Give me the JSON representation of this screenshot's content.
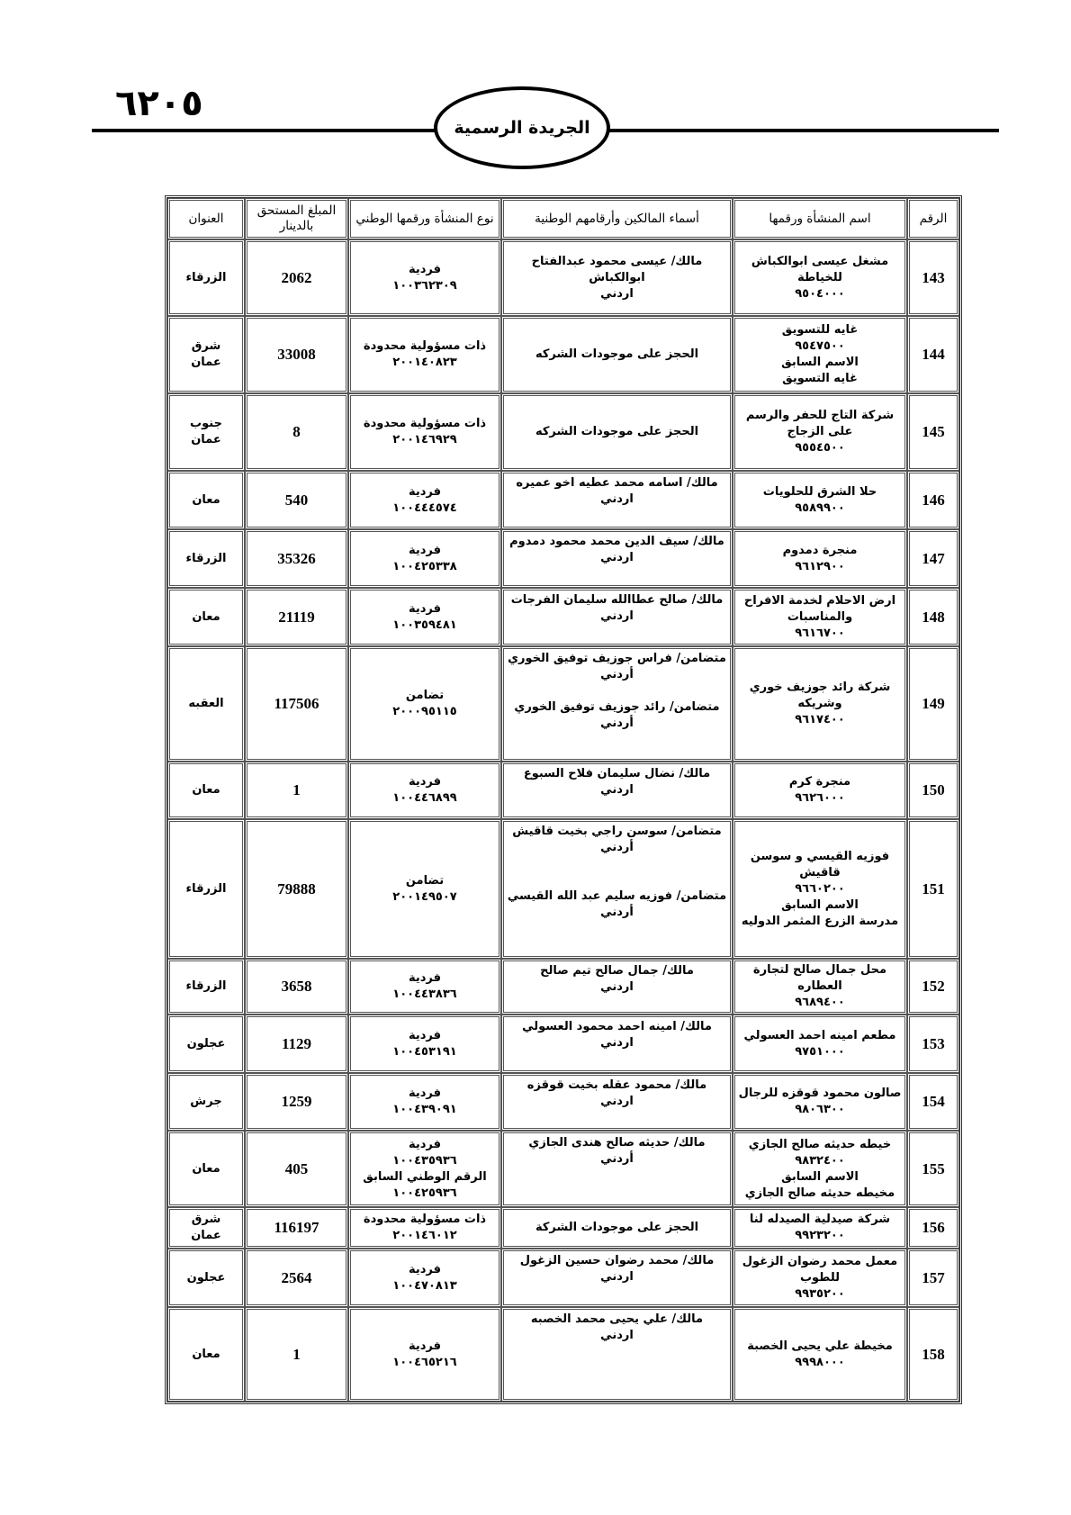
{
  "header": {
    "page_number": "٦٢٠٥",
    "title": "الجريدة الرسمية"
  },
  "table": {
    "columns": [
      "الرقم",
      "اسم المنشأة ورقمها",
      "أسماء المالكين وأرقامهم الوطنية",
      "نوع المنشأة ورقمها الوطني",
      "المبلغ المستحق بالدينار",
      "العنوان"
    ],
    "rows": [
      {
        "no": "143",
        "name": [
          "مشغل عيسى ابوالكباش",
          "للخياطة",
          "٩٥٠٤٠٠٠"
        ],
        "owners": [
          "مالك/ عيسى محمود عبدالفتاح",
          "ابوالكباش",
          "اردني"
        ],
        "type": [
          "فردية",
          "١٠٠٣٦٢٣٠٩"
        ],
        "amount": "2062",
        "address": [
          "الزرقاء"
        ]
      },
      {
        "no": "144",
        "name": [
          "غايه للتسويق",
          "٩٥٤٧٥٠٠",
          "الاسم السابق",
          "غايه التسويق"
        ],
        "owners": [
          "الحجز على موجودات الشركه"
        ],
        "type": [
          "ذات مسؤولية محدودة",
          "٢٠٠١٤٠٨٢٣"
        ],
        "amount": "33008",
        "address": [
          "شرق",
          "عمان"
        ]
      },
      {
        "no": "145",
        "name": [
          "شركة التاج للحفر والرسم",
          "على الزجاج",
          "٩٥٥٤٥٠٠"
        ],
        "owners": [
          "الحجز على موجودات الشركه"
        ],
        "type": [
          "ذات مسؤولية محدودة",
          "٢٠٠١٤٦٩٢٩"
        ],
        "amount": "8",
        "address": [
          "جنوب",
          "عمان"
        ]
      },
      {
        "no": "146",
        "name": [
          "حلا الشرق للحلويات",
          "٩٥٨٩٩٠٠"
        ],
        "owners": [
          "مالك/ اسامه محمد عطيه اخو عميره",
          "اردني"
        ],
        "type": [
          "فردية",
          "١٠٠٤٤٤٥٧٤"
        ],
        "amount": "540",
        "address": [
          "معان"
        ]
      },
      {
        "no": "147",
        "name": [
          "منجرة دمدوم",
          "٩٦١٢٩٠٠"
        ],
        "owners": [
          "مالك/ سيف الدين محمد محمود دمدوم",
          "اردني"
        ],
        "type": [
          "فردية",
          "١٠٠٤٢٥٣٣٨"
        ],
        "amount": "35326",
        "address": [
          "الزرقاء"
        ]
      },
      {
        "no": "148",
        "name": [
          "ارض الاحلام لخدمة الافراح",
          "والمناسبات",
          "٩٦١٦٧٠٠"
        ],
        "owners": [
          "مالك/ صالح عطاالله سليمان الفرجات",
          "اردني"
        ],
        "type": [
          "فردية",
          "١٠٠٣٥٩٤٨١"
        ],
        "amount": "21119",
        "address": [
          "معان"
        ]
      },
      {
        "no": "149",
        "name": [
          "شركة رائد جوزيف خوري",
          "وشريكه",
          "٩٦١٧٤٠٠"
        ],
        "owners": [
          "متضامن/ فراس جوزيف توفيق الخوري",
          "أردني",
          "",
          "متضامن/ رائد جوزيف توفيق الخوري",
          "أردني"
        ],
        "type": [
          "تضامن",
          "٢٠٠٠٩٥١١٥"
        ],
        "amount": "117506",
        "address": [
          "العقبه"
        ]
      },
      {
        "no": "150",
        "name": [
          "منجرة كرم",
          "٩٦٢٦٠٠٠"
        ],
        "owners": [
          "مالك/ نضال سليمان فلاح السبوع",
          "اردني"
        ],
        "type": [
          "فردية",
          "١٠٠٤٤٦٨٩٩"
        ],
        "amount": "1",
        "address": [
          "معان"
        ]
      },
      {
        "no": "151",
        "name": [
          "فوزيه القيسي و سوسن",
          "قاقيش",
          "٩٦٦٠٢٠٠",
          "الاسم السابق",
          "مدرسة الزرع المثمر الدوليه"
        ],
        "owners": [
          "متضامن/ سوسن راجي بخيت قاقيش",
          "أردني",
          "",
          "",
          "متضامن/ فوزيه سليم عبد الله القيسي",
          "أردني"
        ],
        "type": [
          "تضامن",
          "٢٠٠١٤٩٥٠٧"
        ],
        "amount": "79888",
        "address": [
          "الزرقاء"
        ]
      },
      {
        "no": "152",
        "name": [
          "محل جمال صالح لتجارة",
          "العطاره",
          "٩٦٨٩٤٠٠"
        ],
        "owners": [
          "مالك/ جمال صالح تيم صالح",
          "اردني"
        ],
        "type": [
          "فردية",
          "١٠٠٤٤٣٨٣٦"
        ],
        "amount": "3658",
        "address": [
          "الزرقاء"
        ]
      },
      {
        "no": "153",
        "name": [
          "مطعم امينه احمد العسولي",
          "٩٧٥١٠٠٠"
        ],
        "owners": [
          "مالك/ امينه احمد محمود العسولي",
          "اردني"
        ],
        "type": [
          "فردية",
          "١٠٠٤٥٣١٩١"
        ],
        "amount": "1129",
        "address": [
          "عجلون"
        ]
      },
      {
        "no": "154",
        "name": [
          "صالون محمود قوقزه للرجال",
          "٩٨٠٦٣٠٠"
        ],
        "owners": [
          "مالك/ محمود عقله بخيت قوقزه",
          "اردني"
        ],
        "type": [
          "فردية",
          "١٠٠٤٣٩٠٩١"
        ],
        "amount": "1259",
        "address": [
          "جرش"
        ]
      },
      {
        "no": "155",
        "name": [
          "خيطه حديثه صالح الجازي",
          "٩٨٣٢٤٠٠",
          "الاسم السابق",
          "مخيطه حديثه صالح الجازي"
        ],
        "owners": [
          "مالك/ حديثه صالح هندى الجازي",
          "أردني"
        ],
        "type": [
          "فردية",
          "١٠٠٤٣٥٩٣٦",
          "الرقم الوطني السابق",
          "١٠٠٤٢٥٩٣٦"
        ],
        "amount": "405",
        "address": [
          "معان"
        ]
      },
      {
        "no": "156",
        "name": [
          "شركة صيدلية الصيدله لنا",
          "٩٩٢٣٢٠٠"
        ],
        "owners": [
          "الحجز على موجودات الشركة"
        ],
        "type": [
          "ذات مسؤولية محدودة",
          "٢٠٠١٤٦٠١٢"
        ],
        "amount": "116197",
        "address": [
          "شرق",
          "عمان"
        ]
      },
      {
        "no": "157",
        "name": [
          "معمل محمد رضوان الزغول",
          "للطوب",
          "٩٩٣٥٢٠٠"
        ],
        "owners": [
          "مالك/ محمد رضوان حسين الزغول",
          "اردني"
        ],
        "type": [
          "فردية",
          "١٠٠٤٧٠٨١٣"
        ],
        "amount": "2564",
        "address": [
          "عجلون"
        ]
      },
      {
        "no": "158",
        "name": [
          "مخيطة علي يحيى الخصبة",
          "٩٩٩٨٠٠٠"
        ],
        "owners": [
          "مالك/ علي يحيى محمد الخصبه",
          "اردني"
        ],
        "type": [
          "فردية",
          "١٠٠٤٦٥٢١٦"
        ],
        "amount": "1",
        "address": [
          "معان"
        ]
      }
    ]
  }
}
